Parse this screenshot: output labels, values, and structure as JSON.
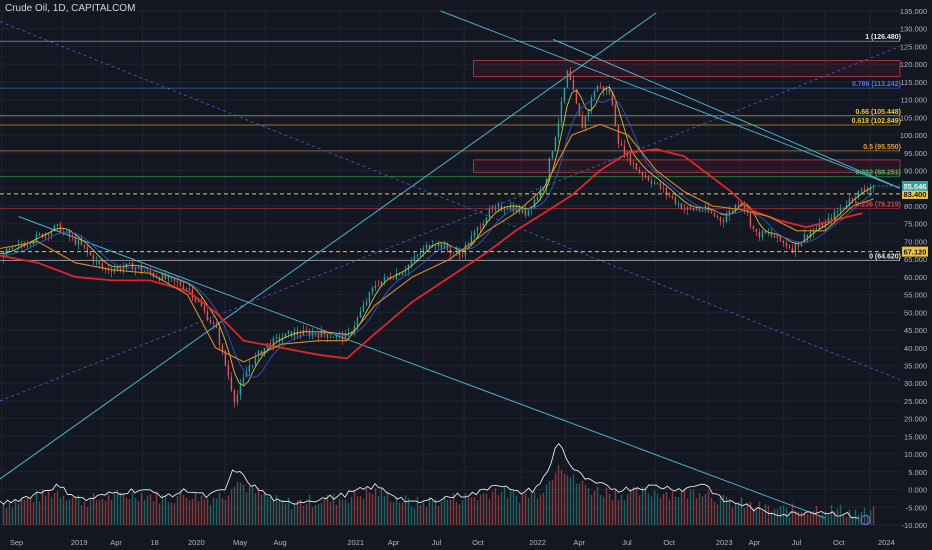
{
  "title": "Crude Oil, 1D, CAPITALCOM",
  "colors": {
    "background": "#131722",
    "grid": "#1f2433",
    "axis_text": "#b2b5be",
    "cyan": "#4fc3d9",
    "ma_red": "#e0262b",
    "ma_orange": "#d98c1f",
    "ma_blue": "#2f55c8",
    "ma_yellow": "#e6d43a",
    "up": "#26a69a",
    "down": "#ef5350",
    "volume_osc": "#e8e8e8",
    "fib_gray": "#7c8089",
    "fib_blue": "#4f7bd8",
    "fib_gold": "#f0c23c",
    "fib_orange": "#e69b3a",
    "fib_green": "#3fbf5a",
    "fib_red": "#e0434b"
  },
  "chart_data": {
    "type": "line",
    "symbol": "Crude Oil",
    "interval": "1D",
    "source": "CAPITALCOM",
    "x_labels": [
      "Sep",
      "2019",
      "Apr",
      "18",
      "2020",
      "May",
      "Aug",
      "2021",
      "Apr",
      "Jul",
      "Oct",
      "2022",
      "Apr",
      "Jul",
      "Oct",
      "2023",
      "Apr",
      "Jul",
      "Oct",
      "2024"
    ],
    "price_axis": {
      "ticks": [
        "135.000",
        "130.000",
        "125.000",
        "120.000",
        "115.000",
        "110.000",
        "105.000",
        "100.000",
        "95.000",
        "90.000",
        "85.000",
        "80.000",
        "75.000",
        "70.000",
        "65.000",
        "60.000",
        "55.000",
        "50.000",
        "45.000",
        "40.000",
        "35.000",
        "30.000",
        "25.000",
        "20.000",
        "15.000",
        "10.000",
        "5.000",
        "0.000",
        "-5.000",
        "-10.000"
      ],
      "range": [
        -10,
        135
      ],
      "note": "single shared scale: price and volume oscillator"
    },
    "price_series": {
      "name": "Crude Oil",
      "points": [
        [
          0.0,
          66
        ],
        [
          3.0,
          70
        ],
        [
          6.0,
          74
        ],
        [
          8.5,
          69
        ],
        [
          11.0,
          62
        ],
        [
          14.0,
          63
        ],
        [
          17.0,
          60
        ],
        [
          20.0,
          57
        ],
        [
          23.0,
          45
        ],
        [
          25.0,
          25
        ],
        [
          26.5,
          35
        ],
        [
          28.5,
          41
        ],
        [
          31.0,
          44
        ],
        [
          34.0,
          44
        ],
        [
          37.0,
          43
        ],
        [
          40.0,
          58
        ],
        [
          43.0,
          62
        ],
        [
          46.0,
          70
        ],
        [
          49.0,
          66
        ],
        [
          52.0,
          78
        ],
        [
          54.0,
          80
        ],
        [
          56.0,
          78
        ],
        [
          58.0,
          86
        ],
        [
          59.5,
          104
        ],
        [
          60.5,
          118
        ],
        [
          62.0,
          102
        ],
        [
          63.5,
          114
        ],
        [
          65.0,
          112
        ],
        [
          66.0,
          97
        ],
        [
          68.0,
          90
        ],
        [
          70.0,
          86
        ],
        [
          73.0,
          79
        ],
        [
          75.0,
          79
        ],
        [
          77.0,
          76
        ],
        [
          79.0,
          82
        ],
        [
          80.5,
          72
        ],
        [
          82.0,
          72
        ],
        [
          84.5,
          68
        ],
        [
          86.0,
          72
        ],
        [
          88.0,
          75
        ],
        [
          91.0,
          83
        ],
        [
          93.2,
          86
        ]
      ]
    },
    "moving_averages": [
      {
        "name": "MA (red)",
        "color": "#e0262b",
        "points": [
          [
            0.0,
            66
          ],
          [
            4.0,
            64
          ],
          [
            8.0,
            60
          ],
          [
            12.0,
            59
          ],
          [
            16.0,
            59
          ],
          [
            20.0,
            56
          ],
          [
            23.0,
            50
          ],
          [
            26.0,
            42
          ],
          [
            30.0,
            40
          ],
          [
            34.0,
            38
          ],
          [
            37.0,
            37
          ],
          [
            40.0,
            44
          ],
          [
            44.0,
            53
          ],
          [
            48.0,
            60
          ],
          [
            52.0,
            67
          ],
          [
            55.0,
            73
          ],
          [
            58.0,
            78
          ],
          [
            61.0,
            83
          ],
          [
            64.0,
            90
          ],
          [
            67.0,
            95
          ],
          [
            70.0,
            96
          ],
          [
            73.0,
            94
          ],
          [
            76.0,
            88
          ],
          [
            78.0,
            84
          ],
          [
            80.0,
            79
          ],
          [
            83.0,
            76
          ],
          [
            86.0,
            74
          ],
          [
            89.0,
            76
          ],
          [
            92.0,
            78
          ]
        ]
      },
      {
        "name": "MA (orange)",
        "color": "#d98c1f",
        "points": [
          [
            0.0,
            68
          ],
          [
            4.0,
            70
          ],
          [
            8.0,
            64
          ],
          [
            12.0,
            62
          ],
          [
            16.0,
            61
          ],
          [
            20.0,
            55
          ],
          [
            23.0,
            40
          ],
          [
            26.0,
            36
          ],
          [
            30.0,
            41
          ],
          [
            34.0,
            42
          ],
          [
            37.0,
            42
          ],
          [
            40.0,
            52
          ],
          [
            44.0,
            60
          ],
          [
            48.0,
            65
          ],
          [
            52.0,
            73
          ],
          [
            55.0,
            78
          ],
          [
            58.0,
            85
          ],
          [
            61.0,
            100
          ],
          [
            64.0,
            103
          ],
          [
            67.0,
            100
          ],
          [
            70.0,
            90
          ],
          [
            73.0,
            84
          ],
          [
            76.0,
            80
          ],
          [
            79.0,
            79
          ],
          [
            82.0,
            77
          ],
          [
            85.0,
            73
          ],
          [
            88.0,
            73
          ],
          [
            91.0,
            80
          ],
          [
            93.2,
            82
          ]
        ]
      }
    ],
    "volume_oscillator": {
      "name": "Volume oscillator",
      "points": [
        [
          0.0,
          -4
        ],
        [
          3.0,
          -2
        ],
        [
          6.0,
          1
        ],
        [
          9.0,
          -3
        ],
        [
          12.0,
          -1
        ],
        [
          15.0,
          0
        ],
        [
          18.0,
          -2
        ],
        [
          20.0,
          0
        ],
        [
          22.0,
          -2
        ],
        [
          24.0,
          0
        ],
        [
          25.0,
          6
        ],
        [
          27.0,
          1
        ],
        [
          30.0,
          -4
        ],
        [
          33.0,
          -3
        ],
        [
          36.0,
          -2
        ],
        [
          40.0,
          1
        ],
        [
          44.0,
          -4
        ],
        [
          48.0,
          -2
        ],
        [
          51.0,
          -1
        ],
        [
          53.0,
          2
        ],
        [
          55.0,
          -1
        ],
        [
          57.0,
          0
        ],
        [
          58.5,
          5
        ],
        [
          59.5,
          14
        ],
        [
          61.0,
          6
        ],
        [
          63.0,
          2
        ],
        [
          66.0,
          0
        ],
        [
          70.0,
          1
        ],
        [
          73.0,
          0
        ],
        [
          75.0,
          2
        ],
        [
          77.0,
          -3
        ],
        [
          79.0,
          -4
        ],
        [
          81.0,
          -6
        ],
        [
          84.0,
          -7
        ],
        [
          87.0,
          -6
        ],
        [
          90.0,
          -7
        ],
        [
          92.0,
          -8
        ]
      ]
    },
    "fibonacci_levels": [
      {
        "label": "1 (126.480)",
        "value": 126.48,
        "color": "#e8e8e8"
      },
      {
        "label": "0.786 (113.242)",
        "value": 113.242,
        "color": "#4f7bd8"
      },
      {
        "label": "0.66 (105.448)",
        "value": 105.448,
        "color": "#f0c23c"
      },
      {
        "label": "0.618 (102.849)",
        "value": 102.849,
        "color": "#f0c23c"
      },
      {
        "label": "0.5 (95.550)",
        "value": 95.55,
        "color": "#e69b3a"
      },
      {
        "label": "0.382 (88.251)",
        "value": 88.251,
        "color": "#3fbf5a"
      },
      {
        "label": "0.236 (79.219)",
        "value": 79.219,
        "color": "#e0434b"
      },
      {
        "label": "0 (64.620)",
        "value": 64.62,
        "color": "#e8e8e8"
      }
    ],
    "horizontal_markers": [
      {
        "label": "83.400",
        "value": 83.4,
        "color": "#f0c23c"
      },
      {
        "label": "67.120",
        "value": 67.12,
        "color": "#f0c23c"
      }
    ],
    "current_price": {
      "label": "85.646",
      "value": 85.646,
      "color": "#26a69a"
    },
    "zones": [
      {
        "from": 116.5,
        "to": 121.0
      },
      {
        "from": 89.5,
        "to": 93.0
      }
    ],
    "trendlines": [
      {
        "from": [
          0.0,
          3
        ],
        "to": [
          70.0,
          134.5
        ],
        "color": "#4fc3d9"
      },
      {
        "from": [
          2.0,
          77
        ],
        "to": [
          88.0,
          -8
        ],
        "color": "#4fc3d9"
      },
      {
        "from": [
          59.0,
          127
        ],
        "to": [
          96.0,
          85
        ],
        "color": "#4fc3d9"
      },
      {
        "from": [
          47.0,
          135
        ],
        "to": [
          96.0,
          85
        ],
        "color": "#4fc3d9"
      },
      {
        "from": [
          0.0,
          132
        ],
        "to": [
          96.0,
          31
        ],
        "color": "#5b64d8"
      },
      {
        "from": [
          0.0,
          25
        ],
        "to": [
          96.0,
          125
        ],
        "color": "#5b64d8"
      }
    ]
  }
}
